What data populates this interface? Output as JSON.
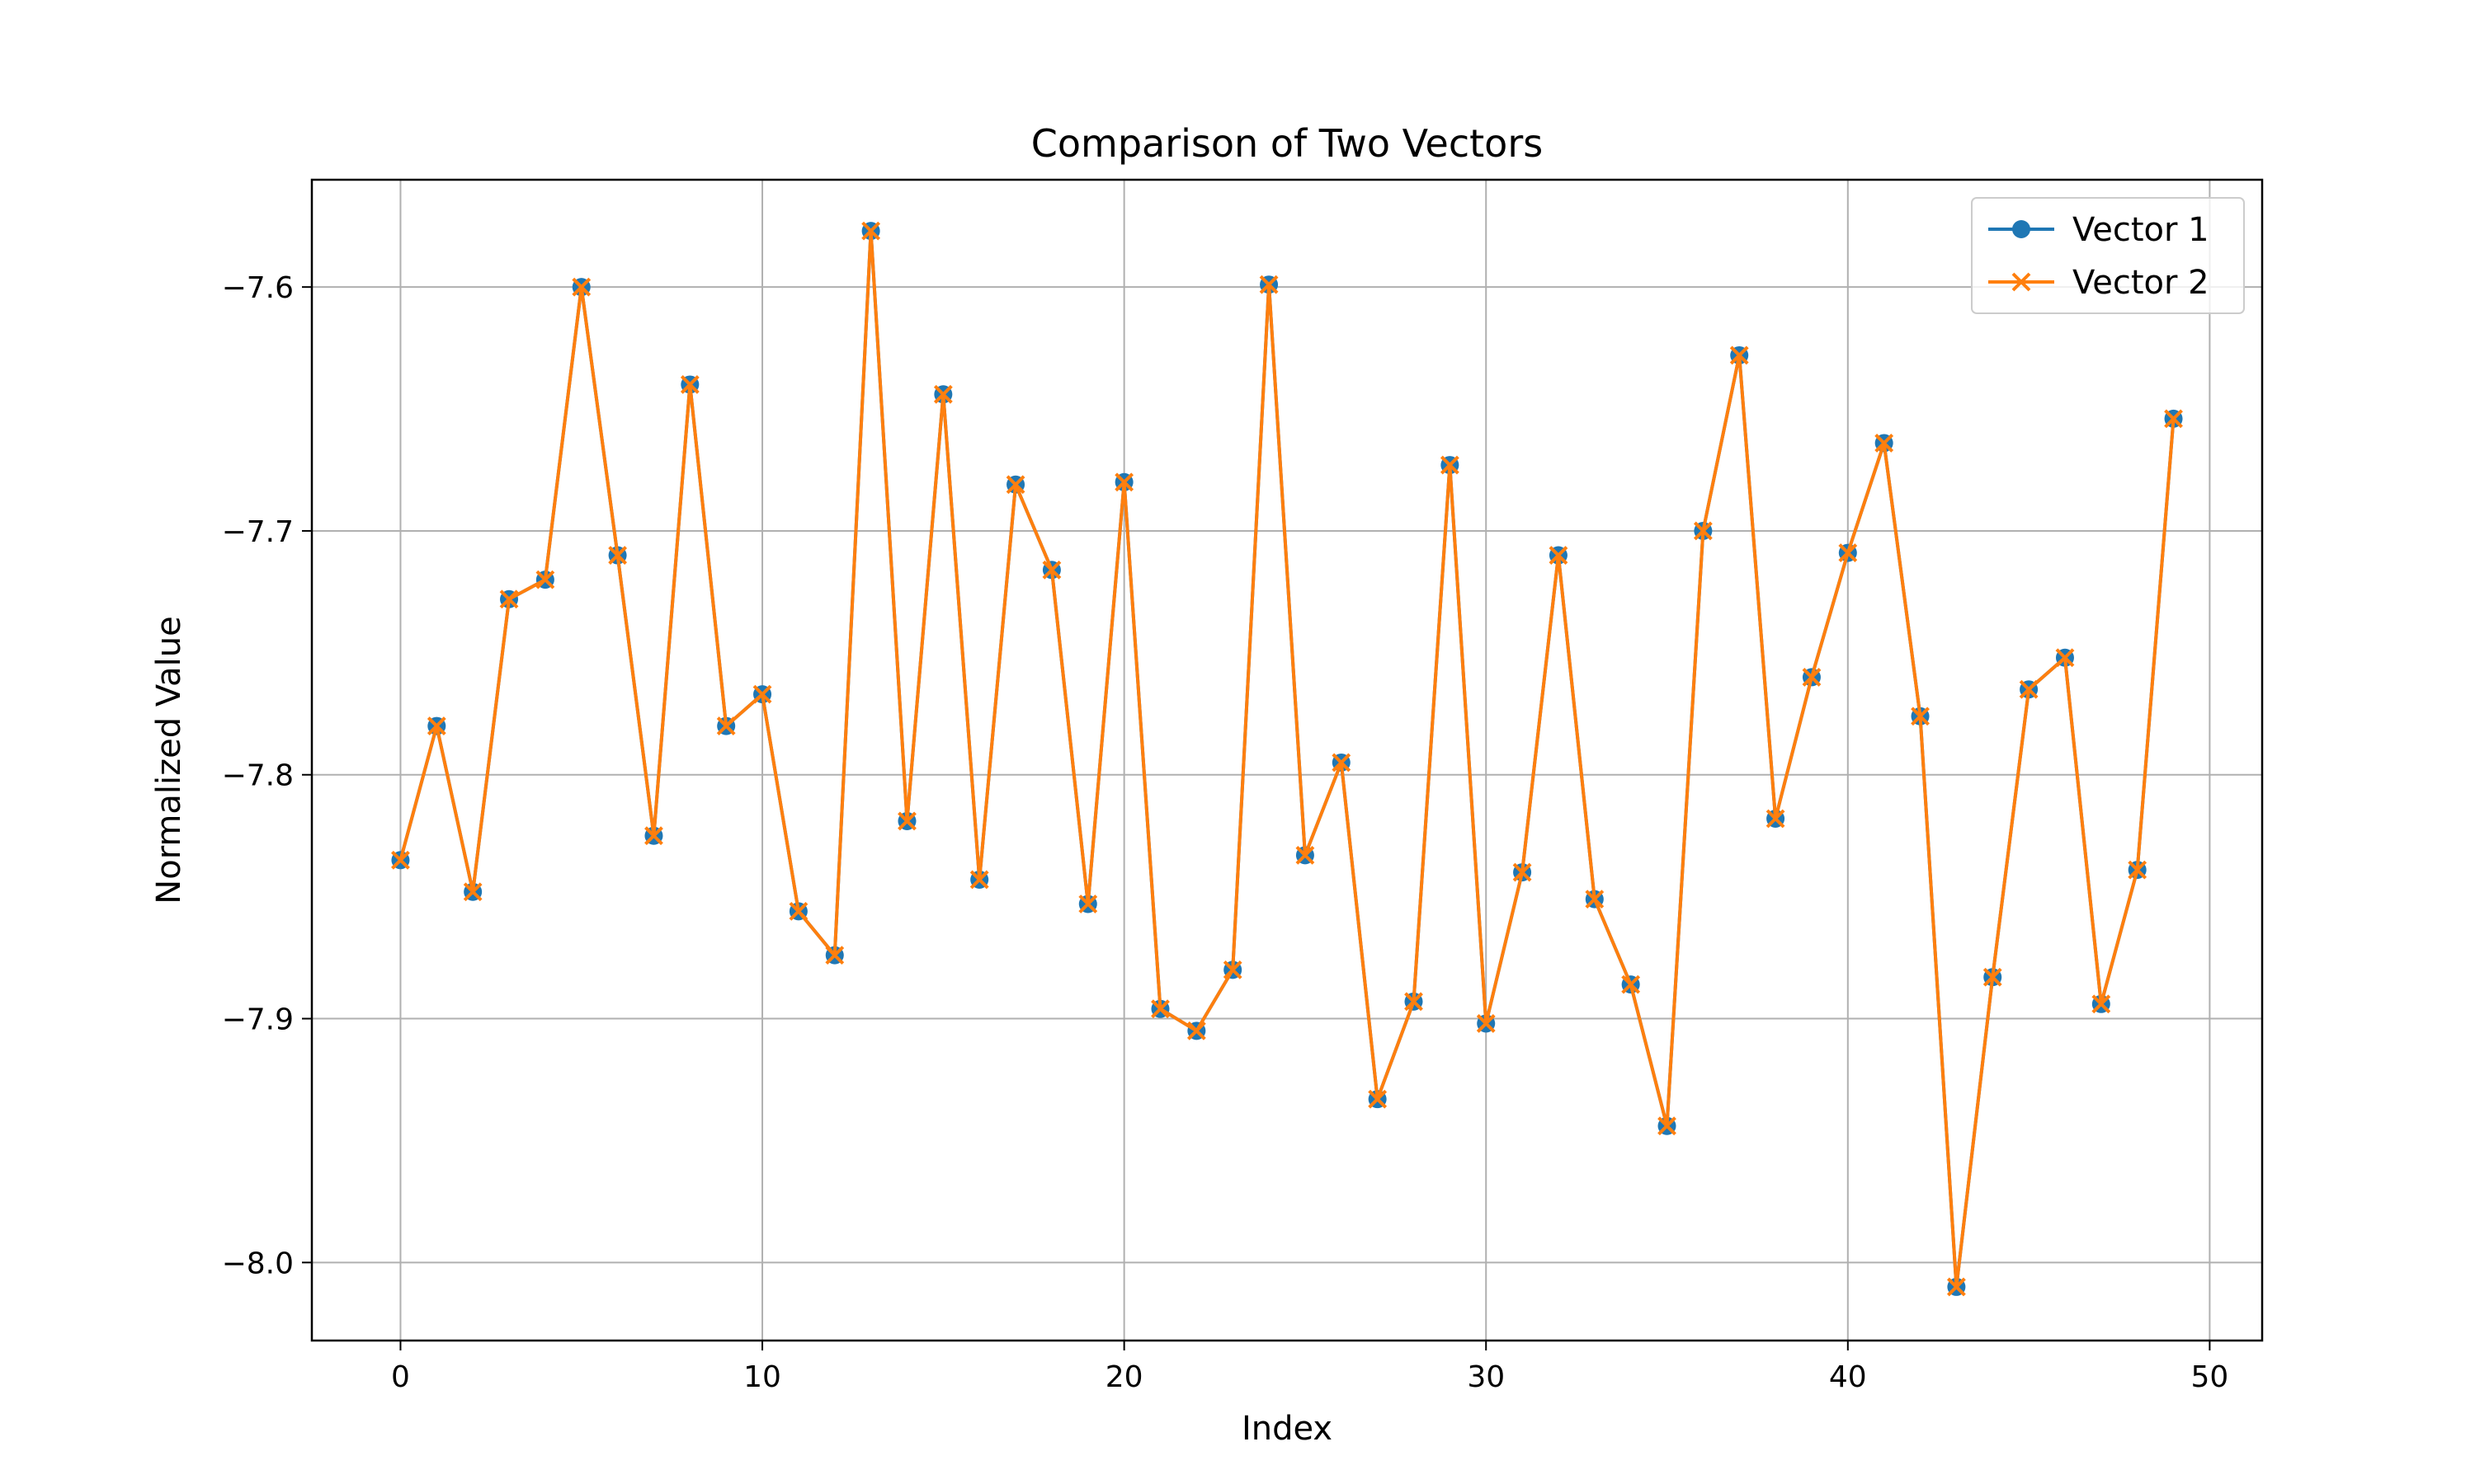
{
  "chart_data": {
    "type": "line",
    "title": "Comparison of Two Vectors",
    "xlabel": "Index",
    "ylabel": "Normalized Value",
    "xlim": [
      -2.45,
      51.45
    ],
    "ylim": [
      -8.032,
      -7.556
    ],
    "xticks": [
      0,
      10,
      20,
      30,
      40,
      50
    ],
    "yticks": [
      -7.6,
      -7.7,
      -7.8,
      -7.9,
      -8.0
    ],
    "xtick_labels": [
      "0",
      "10",
      "20",
      "30",
      "40",
      "50"
    ],
    "ytick_labels": [
      "−7.6",
      "−7.7",
      "−7.8",
      "−7.9",
      "−8.0"
    ],
    "grid": true,
    "legend_position": "top-right",
    "x": [
      0,
      1,
      2,
      3,
      4,
      5,
      6,
      7,
      8,
      9,
      10,
      11,
      12,
      13,
      14,
      15,
      16,
      17,
      18,
      19,
      20,
      21,
      22,
      23,
      24,
      25,
      26,
      27,
      28,
      29,
      30,
      31,
      32,
      33,
      34,
      35,
      36,
      37,
      38,
      39,
      40,
      41,
      42,
      43,
      44,
      45,
      46,
      47,
      48,
      49
    ],
    "series": [
      {
        "name": "Vector 1",
        "color": "#1f77b4",
        "marker": "circle",
        "values": [
          -7.835,
          -7.78,
          -7.848,
          -7.728,
          -7.72,
          -7.6,
          -7.71,
          -7.825,
          -7.64,
          -7.78,
          -7.767,
          -7.856,
          -7.874,
          -7.577,
          -7.819,
          -7.644,
          -7.843,
          -7.681,
          -7.716,
          -7.853,
          -7.68,
          -7.896,
          -7.905,
          -7.88,
          -7.599,
          -7.833,
          -7.795,
          -7.933,
          -7.893,
          -7.673,
          -7.902,
          -7.84,
          -7.71,
          -7.851,
          -7.886,
          -7.944,
          -7.7,
          -7.628,
          -7.818,
          -7.76,
          -7.709,
          -7.664,
          -7.776,
          -8.01,
          -7.883,
          -7.765,
          -7.752,
          -7.894,
          -7.839,
          -7.654
        ]
      },
      {
        "name": "Vector 2",
        "color": "#ff7f0e",
        "marker": "x",
        "values": [
          -7.835,
          -7.78,
          -7.848,
          -7.728,
          -7.72,
          -7.6,
          -7.71,
          -7.825,
          -7.64,
          -7.78,
          -7.767,
          -7.856,
          -7.874,
          -7.577,
          -7.819,
          -7.644,
          -7.843,
          -7.681,
          -7.716,
          -7.853,
          -7.68,
          -7.896,
          -7.905,
          -7.88,
          -7.599,
          -7.833,
          -7.795,
          -7.933,
          -7.893,
          -7.673,
          -7.902,
          -7.84,
          -7.71,
          -7.851,
          -7.886,
          -7.944,
          -7.7,
          -7.628,
          -7.818,
          -7.76,
          -7.709,
          -7.664,
          -7.776,
          -8.01,
          -7.883,
          -7.765,
          -7.752,
          -7.894,
          -7.839,
          -7.654
        ]
      }
    ]
  }
}
